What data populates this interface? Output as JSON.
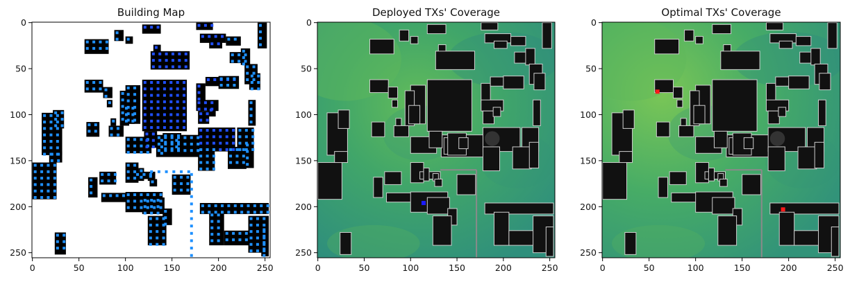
{
  "chart_data": [
    {
      "type": "heatmap",
      "title": "Building Map",
      "xlabel": "",
      "ylabel": "",
      "xlim": [
        0,
        255
      ],
      "ylim": [
        255,
        0
      ],
      "xticks": [
        0,
        50,
        100,
        150,
        200,
        250
      ],
      "yticks": [
        0,
        50,
        100,
        150,
        200,
        250
      ],
      "colors": {
        "background": "#ffffff",
        "building": "#000000",
        "grid_point": "#1e90ff",
        "grid_point_dark": "#1f4fff"
      }
    },
    {
      "type": "heatmap",
      "title": "Deployed TXs' Coverage",
      "xlabel": "",
      "ylabel": "",
      "xlim": [
        0,
        255
      ],
      "ylim": [
        255,
        0
      ],
      "xticks": [
        0,
        50,
        100,
        150,
        200,
        250
      ],
      "yticks": [
        0,
        50,
        100,
        150,
        200,
        250
      ],
      "transmitters": [
        {
          "x": 114,
          "y": 196,
          "color": "#1a1aff"
        }
      ],
      "colors": {
        "low": "#2e8b7d",
        "mid": "#3ea66a",
        "high": "#6cc05a",
        "building": "#111111"
      }
    },
    {
      "type": "heatmap",
      "title": "Optimal TXs' Coverage",
      "xlabel": "",
      "ylabel": "",
      "xlim": [
        0,
        255
      ],
      "ylim": [
        255,
        0
      ],
      "xticks": [
        0,
        50,
        100,
        150,
        200,
        250
      ],
      "yticks": [
        0,
        50,
        100,
        150,
        200,
        250
      ],
      "transmitters": [
        {
          "x": 59,
          "y": 75,
          "color": "#ff1a1a"
        },
        {
          "x": 194,
          "y": 203,
          "color": "#ff1a1a"
        }
      ],
      "colors": {
        "low": "#2e8b7d",
        "mid": "#3ea66a",
        "high": "#6cc05a",
        "building": "#111111"
      }
    }
  ]
}
